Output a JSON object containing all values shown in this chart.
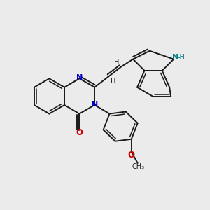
{
  "background_color": "#ebebeb",
  "bond_color": "#1a1a1a",
  "nitrogen_color": "#0000cc",
  "oxygen_color": "#cc0000",
  "nitrogen_h_color": "#008080",
  "label_color": "#1a1a1a",
  "figsize": [
    3.0,
    3.0
  ],
  "dpi": 100,
  "xlim": [
    0,
    10
  ],
  "ylim": [
    0,
    10
  ]
}
